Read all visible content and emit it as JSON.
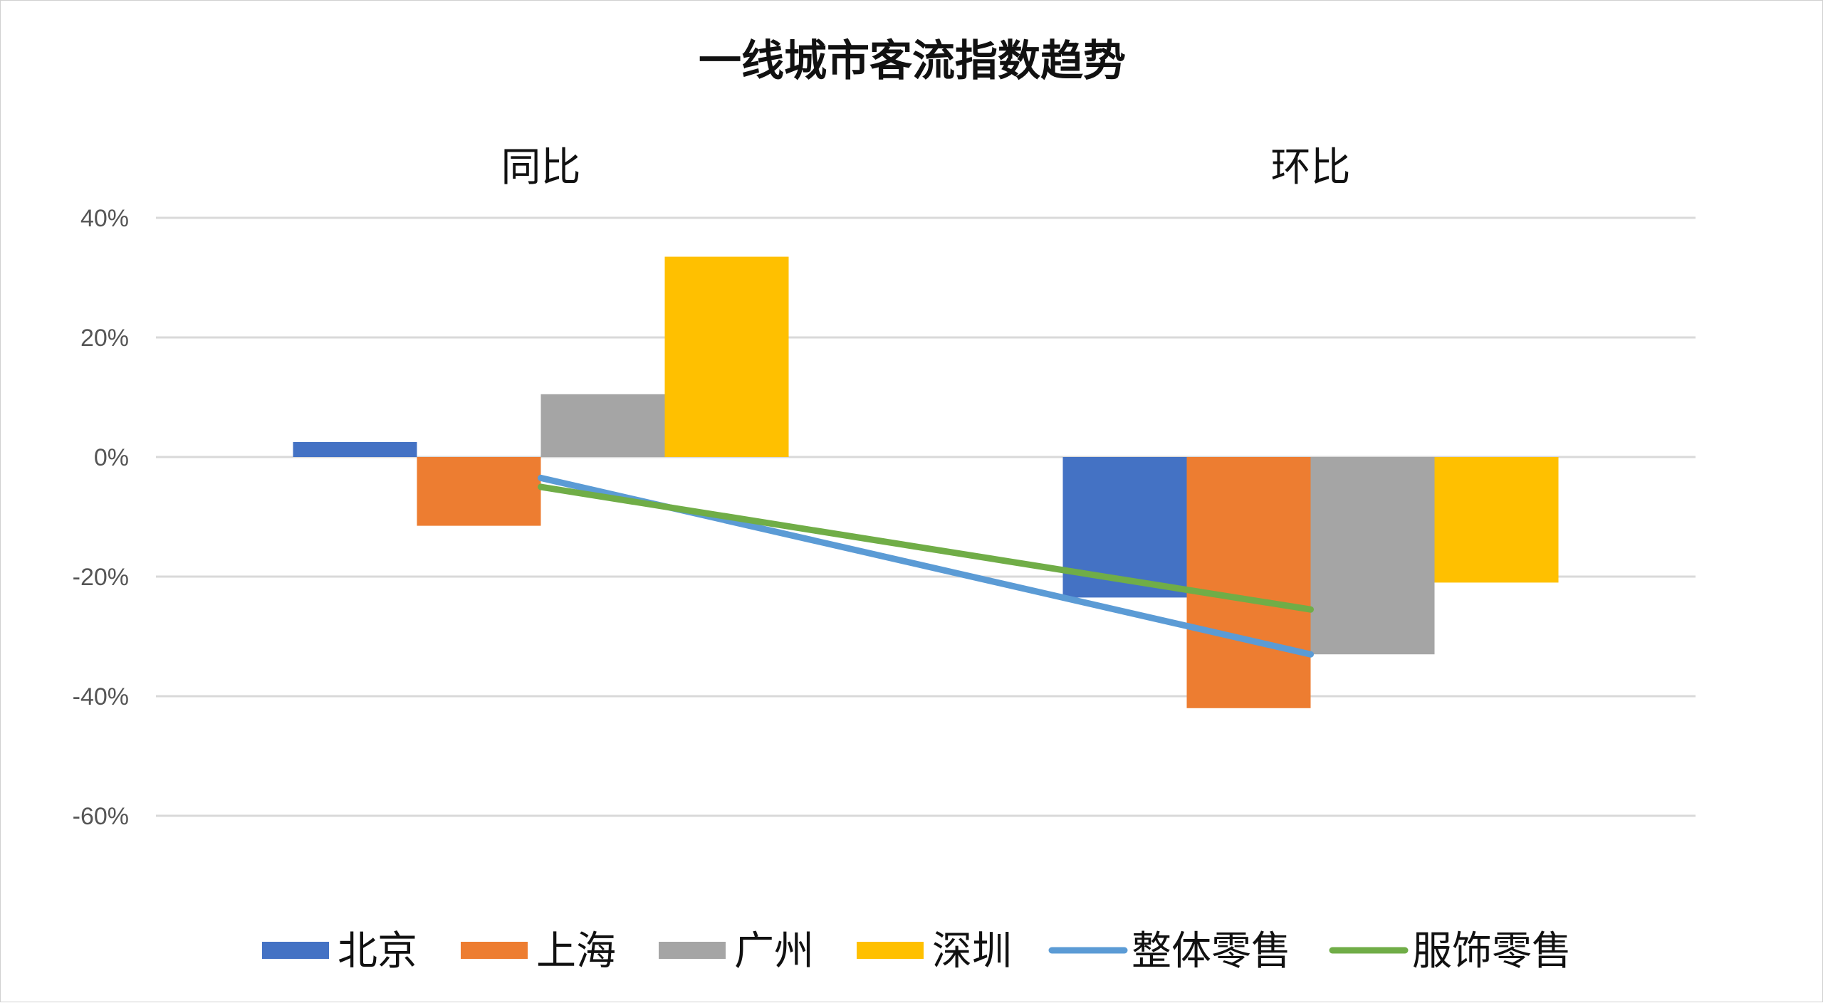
{
  "chart_data": {
    "type": "bar",
    "title": "一线城市客流指数趋势",
    "categories": [
      "同比",
      "环比"
    ],
    "ylim": [
      -60,
      40
    ],
    "yticks": [
      40,
      20,
      0,
      -20,
      -40,
      -60
    ],
    "ytick_labels": [
      "40%",
      "20%",
      "0%",
      "-20%",
      "-40%",
      "-60%"
    ],
    "grid": true,
    "legend_position": "bottom",
    "series": [
      {
        "name": "北京",
        "kind": "bar",
        "color": "#4472C4",
        "values": [
          2.5,
          -23.5
        ]
      },
      {
        "name": "上海",
        "kind": "bar",
        "color": "#ED7D31",
        "values": [
          -11.5,
          -42
        ]
      },
      {
        "name": "广州",
        "kind": "bar",
        "color": "#A5A5A5",
        "values": [
          10.5,
          -33
        ]
      },
      {
        "name": "深圳",
        "kind": "bar",
        "color": "#FFC000",
        "values": [
          33.5,
          -21
        ]
      },
      {
        "name": "整体零售",
        "kind": "line",
        "color": "#5B9BD5",
        "values": [
          -3.5,
          -33
        ]
      },
      {
        "name": "服饰零售",
        "kind": "line",
        "color": "#70AD47",
        "values": [
          -5,
          -25.5
        ]
      }
    ]
  }
}
